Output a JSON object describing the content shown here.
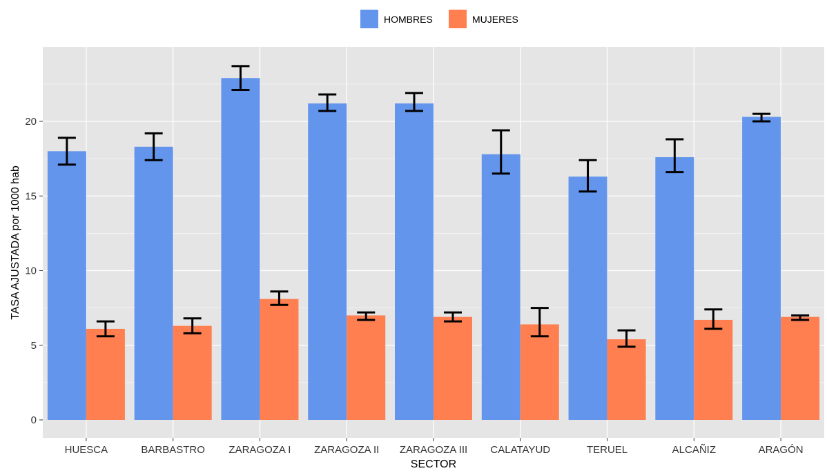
{
  "chart_data": {
    "type": "bar",
    "xlabel": "SECTOR",
    "ylabel": "TASA AJUSTADA por 1000 hab",
    "ylim": [
      0,
      24.4
    ],
    "yticks": [
      0,
      5,
      10,
      15,
      20
    ],
    "grid": true,
    "legend_position": "top",
    "categories": [
      "HUESCA",
      "BARBASTRO",
      "ZARAGOZA I",
      "ZARAGOZA II",
      "ZARAGOZA III",
      "CALATAYUD",
      "TERUEL",
      "ALCAÑIZ",
      "ARAGÓN"
    ],
    "series": [
      {
        "name": "HOMBRES",
        "color": "#6495ED",
        "values": [
          18.0,
          18.3,
          22.9,
          21.2,
          21.2,
          17.8,
          16.3,
          17.6,
          20.3
        ],
        "error_low": [
          17.1,
          17.4,
          22.1,
          20.7,
          20.7,
          16.5,
          15.3,
          16.6,
          20.0
        ],
        "error_high": [
          18.9,
          19.2,
          23.7,
          21.8,
          21.9,
          19.4,
          17.4,
          18.8,
          20.5
        ]
      },
      {
        "name": "MUJERES",
        "color": "#FF7F50",
        "values": [
          6.1,
          6.3,
          8.1,
          7.0,
          6.9,
          6.4,
          5.4,
          6.7,
          6.9
        ],
        "error_low": [
          5.6,
          5.8,
          7.7,
          6.7,
          6.6,
          5.6,
          4.9,
          6.1,
          6.7
        ],
        "error_high": [
          6.6,
          6.8,
          8.6,
          7.2,
          7.2,
          7.5,
          6.0,
          7.4,
          7.0
        ]
      }
    ]
  }
}
